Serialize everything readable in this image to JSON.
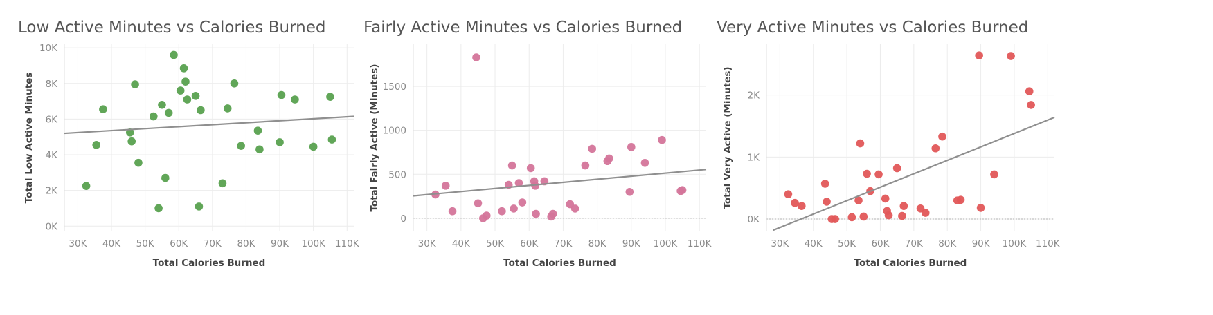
{
  "chart_data": [
    {
      "type": "scatter",
      "title": "Low Active Minutes vs Calories Burned",
      "xlabel": "Total Calories Burned",
      "ylabel": "Total Low Active Minutes",
      "xlim": [
        26000,
        112000
      ],
      "ylim": [
        -300,
        10200
      ],
      "xticks": [
        30000,
        40000,
        50000,
        60000,
        70000,
        80000,
        90000,
        100000,
        110000
      ],
      "xtick_labels": [
        "30K",
        "40K",
        "50K",
        "60K",
        "70K",
        "80K",
        "90K",
        "100K",
        "110K"
      ],
      "yticks": [
        0,
        2000,
        4000,
        6000,
        8000,
        10000
      ],
      "ytick_labels": [
        "0K",
        "2K",
        "4K",
        "6K",
        "8K",
        "10K"
      ],
      "grid": true,
      "zero_line": false,
      "color": "#59A14F",
      "trendline": {
        "start": [
          26000,
          5200
        ],
        "end": [
          112000,
          6150
        ]
      },
      "points": [
        [
          32500,
          2250
        ],
        [
          35500,
          4550
        ],
        [
          37500,
          6550
        ],
        [
          45500,
          5250
        ],
        [
          46000,
          4750
        ],
        [
          47000,
          7950
        ],
        [
          48000,
          3550
        ],
        [
          52500,
          6150
        ],
        [
          54000,
          1000
        ],
        [
          55000,
          6800
        ],
        [
          56000,
          2700
        ],
        [
          57000,
          6350
        ],
        [
          58500,
          9600
        ],
        [
          60500,
          7600
        ],
        [
          61500,
          8850
        ],
        [
          62000,
          8100
        ],
        [
          62500,
          7100
        ],
        [
          65000,
          7300
        ],
        [
          66000,
          1100
        ],
        [
          66500,
          6500
        ],
        [
          73000,
          2400
        ],
        [
          74500,
          6600
        ],
        [
          76500,
          8000
        ],
        [
          78500,
          4500
        ],
        [
          83500,
          5350
        ],
        [
          84000,
          4300
        ],
        [
          90000,
          4700
        ],
        [
          90500,
          7350
        ],
        [
          94500,
          7100
        ],
        [
          100000,
          4450
        ],
        [
          105000,
          7250
        ],
        [
          105500,
          4850
        ]
      ]
    },
    {
      "type": "scatter",
      "title": "Fairly Active Minutes vs Calories Burned",
      "xlabel": "Total Calories Burned",
      "ylabel": "Total Fairly Active (Minutes)",
      "xlim": [
        26000,
        112000
      ],
      "ylim": [
        -150,
        1980
      ],
      "xticks": [
        30000,
        40000,
        50000,
        60000,
        70000,
        80000,
        90000,
        100000,
        110000
      ],
      "xtick_labels": [
        "30K",
        "40K",
        "50K",
        "60K",
        "70K",
        "80K",
        "90K",
        "100K",
        "110K"
      ],
      "yticks": [
        0,
        500,
        1000,
        1500
      ],
      "ytick_labels": [
        "0",
        "500",
        "1000",
        "1500"
      ],
      "grid": true,
      "zero_line": true,
      "color": "#D4759A",
      "trendline": {
        "start": [
          26000,
          255
        ],
        "end": [
          112000,
          555
        ]
      },
      "points": [
        [
          32500,
          270
        ],
        [
          35500,
          370
        ],
        [
          37500,
          80
        ],
        [
          44500,
          1830
        ],
        [
          45000,
          170
        ],
        [
          46500,
          0
        ],
        [
          47500,
          30
        ],
        [
          52000,
          80
        ],
        [
          54000,
          380
        ],
        [
          55000,
          600
        ],
        [
          55500,
          110
        ],
        [
          57000,
          400
        ],
        [
          58000,
          180
        ],
        [
          60500,
          570
        ],
        [
          61500,
          420
        ],
        [
          61800,
          370
        ],
        [
          62000,
          50
        ],
        [
          64500,
          420
        ],
        [
          66500,
          20
        ],
        [
          67000,
          50
        ],
        [
          72000,
          160
        ],
        [
          73500,
          110
        ],
        [
          76500,
          600
        ],
        [
          78500,
          790
        ],
        [
          83000,
          650
        ],
        [
          83500,
          680
        ],
        [
          89500,
          300
        ],
        [
          90000,
          810
        ],
        [
          94000,
          630
        ],
        [
          99000,
          890
        ],
        [
          104500,
          310
        ],
        [
          105000,
          320
        ]
      ]
    },
    {
      "type": "scatter",
      "title": "Very Active Minutes vs Calories Burned",
      "xlabel": "Total Calories Burned",
      "ylabel": "Total Very Active (Minutes)",
      "xlim": [
        26000,
        112000
      ],
      "ylim": [
        -200,
        2820
      ],
      "xticks": [
        30000,
        40000,
        50000,
        60000,
        70000,
        80000,
        90000,
        100000,
        110000
      ],
      "xtick_labels": [
        "30K",
        "40K",
        "50K",
        "60K",
        "70K",
        "80K",
        "90K",
        "100K",
        "110K"
      ],
      "yticks": [
        0,
        1000,
        2000
      ],
      "ytick_labels": [
        "0K",
        "1K",
        "2K"
      ],
      "grid": true,
      "zero_line": true,
      "color": "#E15759",
      "trendline": {
        "start": [
          28000,
          -180
        ],
        "end": [
          112000,
          1640
        ]
      },
      "points": [
        [
          32500,
          400
        ],
        [
          34500,
          260
        ],
        [
          36500,
          210
        ],
        [
          43500,
          570
        ],
        [
          44000,
          280
        ],
        [
          45500,
          0
        ],
        [
          46500,
          0
        ],
        [
          51500,
          30
        ],
        [
          53500,
          300
        ],
        [
          54000,
          1220
        ],
        [
          55000,
          40
        ],
        [
          56000,
          730
        ],
        [
          57000,
          450
        ],
        [
          59500,
          720
        ],
        [
          61500,
          330
        ],
        [
          62000,
          130
        ],
        [
          62500,
          60
        ],
        [
          65000,
          820
        ],
        [
          66500,
          50
        ],
        [
          67000,
          210
        ],
        [
          72000,
          170
        ],
        [
          73500,
          100
        ],
        [
          76500,
          1140
        ],
        [
          78500,
          1330
        ],
        [
          83000,
          300
        ],
        [
          84000,
          310
        ],
        [
          89500,
          2640
        ],
        [
          90000,
          180
        ],
        [
          94000,
          720
        ],
        [
          99000,
          2630
        ],
        [
          104500,
          2060
        ],
        [
          105000,
          1840
        ]
      ]
    }
  ]
}
